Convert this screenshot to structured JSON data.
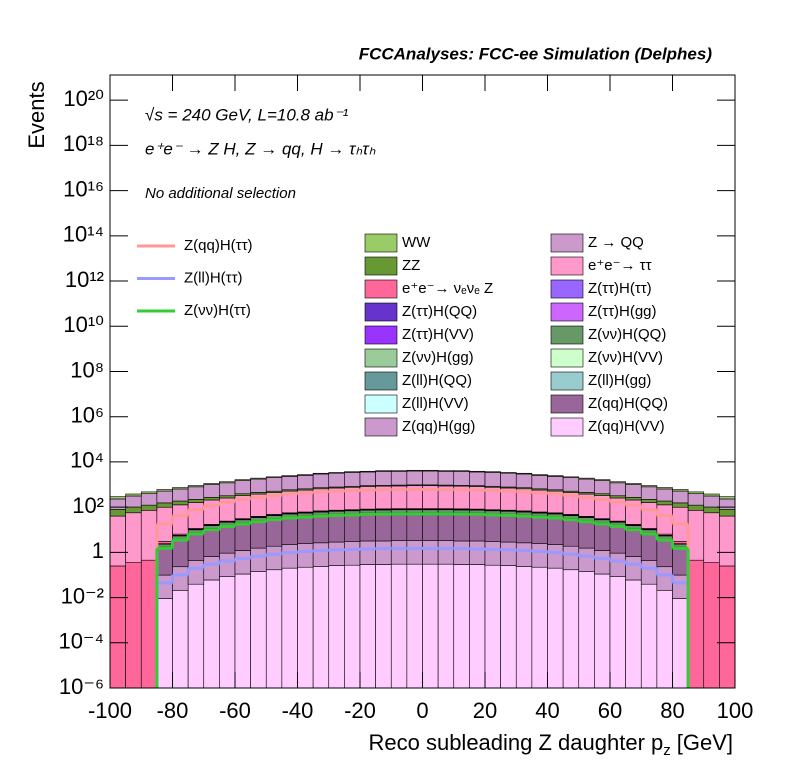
{
  "chart_data": {
    "type": "stacked_histogram",
    "title": "FCCAnalyses: FCC-ee Simulation (Delphes)",
    "annotations": [
      "√s = 240 GeV, L=10.8 ab⁻¹",
      "e⁺e⁻ → Z H, Z → qq, H → τₕτₕ",
      "No additional selection"
    ],
    "y_label": "Events",
    "x_label": {
      "text": "Reco subleading Z daughter p",
      "subscript": "z",
      "unit": "[GeV]"
    },
    "log_y": true,
    "xlim": [
      -100,
      100
    ],
    "xticks": [
      -100,
      -80,
      -60,
      -40,
      -20,
      0,
      20,
      40,
      60,
      80,
      100
    ],
    "ylim": [
      1e-06,
      1.3e+21
    ],
    "yticks": [
      {
        "value": 1e-06,
        "label": "10⁻⁶"
      },
      {
        "value": 0.0001,
        "label": "10⁻⁴"
      },
      {
        "value": 0.01,
        "label": "10⁻²"
      },
      1,
      {
        "value": 100,
        "label": "10²"
      },
      {
        "value": 10000,
        "label": "10⁴"
      },
      {
        "value": 1000000.0,
        "label": "10⁶"
      },
      {
        "value": 100000000.0,
        "label": "10⁸"
      },
      {
        "value": 10000000000.0,
        "label": "10¹⁰"
      },
      {
        "value": 1000000000000.0,
        "label": "10¹²"
      },
      {
        "value": 100000000000000.0,
        "label": "10¹⁴"
      },
      {
        "value": 1e+16,
        "label": "10¹⁶"
      },
      {
        "value": 1e+18,
        "label": "10¹⁸"
      },
      {
        "value": 1e+20,
        "label": "10²⁰"
      }
    ],
    "bins": [
      -100,
      -95,
      -90,
      -85,
      -80,
      -75,
      -70,
      -65,
      -60,
      -55,
      -50,
      -45,
      -40,
      -35,
      -30,
      -25,
      -20,
      -15,
      -10,
      -5,
      0,
      5,
      10,
      15,
      20,
      25,
      30,
      35,
      40,
      45,
      50,
      55,
      60,
      65,
      70,
      75,
      80,
      85,
      90,
      95,
      100
    ],
    "series": [
      {
        "name": "WW",
        "color": "#99cc66",
        "values": [
          60,
          70,
          80,
          90,
          100,
          110,
          120,
          140,
          150,
          170,
          180,
          200,
          210,
          230,
          240,
          260,
          270,
          280,
          290,
          300,
          300,
          290,
          280,
          270,
          260,
          240,
          230,
          210,
          200,
          180,
          170,
          150,
          140,
          120,
          110,
          100,
          90,
          80,
          70,
          60
        ]
      },
      {
        "name": "Z → QQ",
        "color": "#cc99cc",
        "values": [
          150,
          210,
          270,
          360,
          450,
          570,
          720,
          870,
          1100,
          1300,
          1500,
          1700,
          1900,
          2200,
          2400,
          2600,
          2700,
          2900,
          2900,
          3000,
          3000,
          2900,
          2900,
          2700,
          2600,
          2400,
          2200,
          1900,
          1700,
          1500,
          1300,
          1100,
          870,
          720,
          570,
          450,
          360,
          270,
          210,
          150
        ]
      },
      {
        "name": "ZZ",
        "color": "#669933",
        "values": [
          40,
          45,
          50,
          55,
          60,
          60,
          65,
          65,
          70,
          70,
          70,
          70,
          75,
          75,
          75,
          80,
          80,
          80,
          80,
          80,
          80,
          80,
          80,
          80,
          80,
          75,
          75,
          75,
          70,
          70,
          70,
          70,
          65,
          65,
          60,
          60,
          55,
          50,
          45,
          40
        ]
      },
      {
        "name": "e⁺e⁻→ ττ",
        "color": "#ff99cc",
        "values": [
          40,
          56,
          72,
          96,
          120,
          150,
          190,
          230,
          290,
          340,
          390,
          460,
          510,
          580,
          630,
          680,
          730,
          760,
          780,
          800,
          800,
          780,
          760,
          730,
          680,
          630,
          580,
          510,
          460,
          390,
          340,
          290,
          230,
          190,
          150,
          120,
          96,
          72,
          56,
          40
        ]
      },
      {
        "name": "e⁺e⁻→ νₑνₑ Z",
        "color": "#ff6699",
        "values": [
          0.25,
          0.35,
          0.45,
          0.6,
          0.75,
          0.95,
          1.2,
          1.5,
          1.8,
          2.1,
          2.5,
          2.9,
          3.2,
          3.6,
          4,
          4.3,
          4.6,
          4.8,
          4.9,
          5,
          5,
          4.9,
          4.8,
          4.6,
          4.3,
          4,
          3.6,
          3.2,
          2.9,
          2.5,
          2.1,
          1.8,
          1.5,
          1.2,
          0.95,
          0.75,
          0.6,
          0.45,
          0.35,
          0.25
        ]
      },
      {
        "name": "Z(ττ)H(ττ)",
        "color": "#9966ff",
        "values": [
          0,
          0,
          0,
          0.009,
          0.021,
          0.039,
          0.06,
          0.084,
          0.11,
          0.14,
          0.17,
          0.2,
          0.22,
          0.24,
          0.26,
          0.27,
          0.29,
          0.29,
          0.3,
          0.3,
          0.3,
          0.3,
          0.29,
          0.29,
          0.27,
          0.26,
          0.24,
          0.22,
          0.2,
          0.17,
          0.14,
          0.11,
          0.084,
          0.06,
          0.039,
          0.021,
          0.009,
          0,
          0,
          0
        ]
      },
      {
        "name": "Z(ττ)H(QQ)",
        "color": "#6633cc",
        "values": [
          0,
          0,
          0,
          0.09,
          0.21,
          0.39,
          0.6,
          0.84,
          1.1,
          1.4,
          1.7,
          2,
          2.2,
          2.4,
          2.6,
          2.7,
          2.9,
          2.9,
          3,
          3,
          3,
          3,
          2.9,
          2.9,
          2.7,
          2.6,
          2.4,
          2.2,
          2,
          1.7,
          1.4,
          1.1,
          0.84,
          0.6,
          0.39,
          0.21,
          0.09,
          0,
          0,
          0
        ]
      },
      {
        "name": "Z(ττ)H(gg)",
        "color": "#cc66ff",
        "values": [
          0,
          0,
          0,
          0.009,
          0.021,
          0.039,
          0.06,
          0.084,
          0.11,
          0.14,
          0.17,
          0.2,
          0.22,
          0.24,
          0.26,
          0.27,
          0.29,
          0.29,
          0.3,
          0.3,
          0.3,
          0.3,
          0.29,
          0.29,
          0.27,
          0.26,
          0.24,
          0.22,
          0.2,
          0.17,
          0.14,
          0.11,
          0.084,
          0.06,
          0.039,
          0.021,
          0.009,
          0,
          0,
          0
        ]
      },
      {
        "name": "Z(ττ)H(VV)",
        "color": "#9933ff",
        "values": [
          0,
          0,
          0,
          0.015,
          0.035,
          0.065,
          0.1,
          0.14,
          0.18,
          0.23,
          0.28,
          0.33,
          0.36,
          0.4,
          0.43,
          0.45,
          0.48,
          0.49,
          0.5,
          0.5,
          0.5,
          0.5,
          0.49,
          0.48,
          0.45,
          0.43,
          0.4,
          0.36,
          0.33,
          0.28,
          0.23,
          0.18,
          0.14,
          0.1,
          0.065,
          0.035,
          0.015,
          0,
          0,
          0
        ]
      },
      {
        "name": "Z(νν)H(QQ)",
        "color": "#669966",
        "values": [
          0,
          0,
          0,
          0.6,
          1.4,
          2.6,
          4,
          5.6,
          7.2,
          9,
          11,
          13,
          14,
          16,
          17,
          18,
          19,
          20,
          20,
          20,
          20,
          20,
          20,
          19,
          18,
          17,
          16,
          14,
          13,
          11,
          9,
          7.2,
          5.6,
          4,
          2.6,
          1.4,
          0.6,
          0,
          0,
          0
        ]
      },
      {
        "name": "Z(νν)H(gg)",
        "color": "#99cc99",
        "values": [
          0,
          0,
          0,
          0.06,
          0.14,
          0.26,
          0.4,
          0.56,
          0.72,
          0.9,
          1.1,
          1.3,
          1.4,
          1.6,
          1.7,
          1.8,
          1.9,
          2,
          2,
          2,
          2,
          2,
          2,
          1.9,
          1.8,
          1.7,
          1.6,
          1.4,
          1.3,
          1.1,
          0.9,
          0.72,
          0.56,
          0.4,
          0.26,
          0.14,
          0.06,
          0,
          0,
          0
        ]
      },
      {
        "name": "Z(νν)H(VV)",
        "color": "#ccffcc",
        "values": [
          0,
          0,
          0,
          0.03,
          0.07,
          0.13,
          0.2,
          0.28,
          0.36,
          0.45,
          0.55,
          0.65,
          0.72,
          0.8,
          0.85,
          0.9,
          0.95,
          0.98,
          1,
          1,
          1,
          1,
          0.98,
          0.95,
          0.9,
          0.85,
          0.8,
          0.72,
          0.65,
          0.55,
          0.45,
          0.36,
          0.28,
          0.2,
          0.13,
          0.07,
          0.03,
          0,
          0,
          0
        ]
      },
      {
        "name": "Z(ll)H(QQ)",
        "color": "#669999",
        "values": [
          0,
          0,
          0,
          0.009,
          0.021,
          0.039,
          0.06,
          0.084,
          0.11,
          0.14,
          0.17,
          0.2,
          0.22,
          0.24,
          0.26,
          0.27,
          0.29,
          0.29,
          0.3,
          0.3,
          0.3,
          0.3,
          0.29,
          0.29,
          0.27,
          0.26,
          0.24,
          0.22,
          0.2,
          0.17,
          0.14,
          0.11,
          0.084,
          0.06,
          0.039,
          0.021,
          0.009,
          0,
          0,
          0
        ]
      },
      {
        "name": "Z(ll)H(gg)",
        "color": "#99cccc",
        "values": [
          0,
          0,
          0,
          0.0006,
          0.0014,
          0.0026,
          0.004,
          0.0056,
          0.0072,
          0.009,
          0.011,
          0.013,
          0.014,
          0.016,
          0.017,
          0.018,
          0.019,
          0.02,
          0.02,
          0.02,
          0.02,
          0.02,
          0.02,
          0.019,
          0.018,
          0.017,
          0.016,
          0.014,
          0.013,
          0.011,
          0.009,
          0.0072,
          0.0056,
          0.004,
          0.0026,
          0.0014,
          0.0006,
          0,
          0,
          0
        ]
      },
      {
        "name": "Z(ll)H(VV)",
        "color": "#ccffff",
        "values": [
          0,
          0,
          0,
          0.0015,
          0.0035,
          0.0065,
          0.01,
          0.014,
          0.018,
          0.023,
          0.028,
          0.033,
          0.036,
          0.04,
          0.043,
          0.045,
          0.048,
          0.049,
          0.05,
          0.05,
          0.05,
          0.05,
          0.049,
          0.048,
          0.045,
          0.043,
          0.04,
          0.036,
          0.033,
          0.028,
          0.023,
          0.018,
          0.014,
          0.01,
          0.0065,
          0.0035,
          0.0015,
          0,
          0,
          0
        ]
      },
      {
        "name": "Z(qq)H(QQ)",
        "color": "#996699",
        "values": [
          0,
          0,
          0,
          1.5,
          3.5,
          6.5,
          10,
          14,
          18,
          23,
          28,
          33,
          36,
          40,
          43,
          45,
          48,
          49,
          50,
          50,
          50,
          50,
          49,
          48,
          45,
          43,
          40,
          36,
          33,
          28,
          23,
          18,
          14,
          10,
          6.5,
          3.5,
          1.5,
          0,
          0,
          0
        ]
      },
      {
        "name": "Z(qq)H(gg)",
        "color": "#cc99cc",
        "values": [
          0,
          0,
          0,
          0.09,
          0.21,
          0.39,
          0.6,
          0.84,
          1.1,
          1.4,
          1.7,
          2,
          2.2,
          2.4,
          2.6,
          2.7,
          2.9,
          2.9,
          3,
          3,
          3,
          3,
          2.9,
          2.9,
          2.7,
          2.6,
          2.4,
          2.2,
          2,
          1.7,
          1.4,
          1.1,
          0.84,
          0.6,
          0.39,
          0.21,
          0.09,
          0,
          0,
          0
        ]
      },
      {
        "name": "Z(qq)H(VV)",
        "color": "#ffccff",
        "values": [
          0,
          0,
          0,
          0.009,
          0.021,
          0.039,
          0.06,
          0.084,
          0.11,
          0.14,
          0.17,
          0.2,
          0.22,
          0.24,
          0.26,
          0.27,
          0.29,
          0.29,
          0.3,
          0.3,
          0.3,
          0.3,
          0.29,
          0.29,
          0.27,
          0.26,
          0.24,
          0.22,
          0.2,
          0.17,
          0.14,
          0.11,
          0.084,
          0.06,
          0.039,
          0.021,
          0.009,
          0,
          0,
          0
        ]
      }
    ],
    "signal_series": [
      {
        "name": "Z(qq)H(ττ)",
        "color": "#ff9999",
        "values": [
          0,
          0,
          0,
          18,
          42,
          78,
          120,
          170,
          220,
          270,
          330,
          390,
          430,
          480,
          510,
          540,
          570,
          590,
          600,
          600,
          600,
          600,
          590,
          570,
          540,
          510,
          480,
          430,
          390,
          330,
          270,
          220,
          170,
          120,
          78,
          42,
          18,
          0,
          0,
          0
        ]
      },
      {
        "name": "Z(ll)H(ττ)",
        "color": "#9999ff",
        "values": [
          0,
          0,
          0,
          0.045,
          0.1,
          0.2,
          0.3,
          0.42,
          0.54,
          0.68,
          0.83,
          0.98,
          1.1,
          1.2,
          1.3,
          1.35,
          1.4,
          1.5,
          1.5,
          1.5,
          1.5,
          1.5,
          1.5,
          1.4,
          1.35,
          1.3,
          1.2,
          1.1,
          0.98,
          0.83,
          0.68,
          0.54,
          0.42,
          0.3,
          0.2,
          0.1,
          0.045,
          0,
          0,
          0
        ]
      },
      {
        "name": "Z(νν)H(ττ)",
        "color": "#33cc33",
        "values": [
          0,
          0,
          0,
          1.5,
          3.5,
          6.5,
          10,
          14,
          18,
          23,
          28,
          33,
          36,
          40,
          43,
          45,
          48,
          49,
          50,
          50,
          50,
          50,
          49,
          48,
          45,
          43,
          40,
          36,
          33,
          28,
          23,
          18,
          14,
          10,
          6.5,
          3.5,
          1.5,
          0,
          0,
          0
        ]
      }
    ]
  }
}
